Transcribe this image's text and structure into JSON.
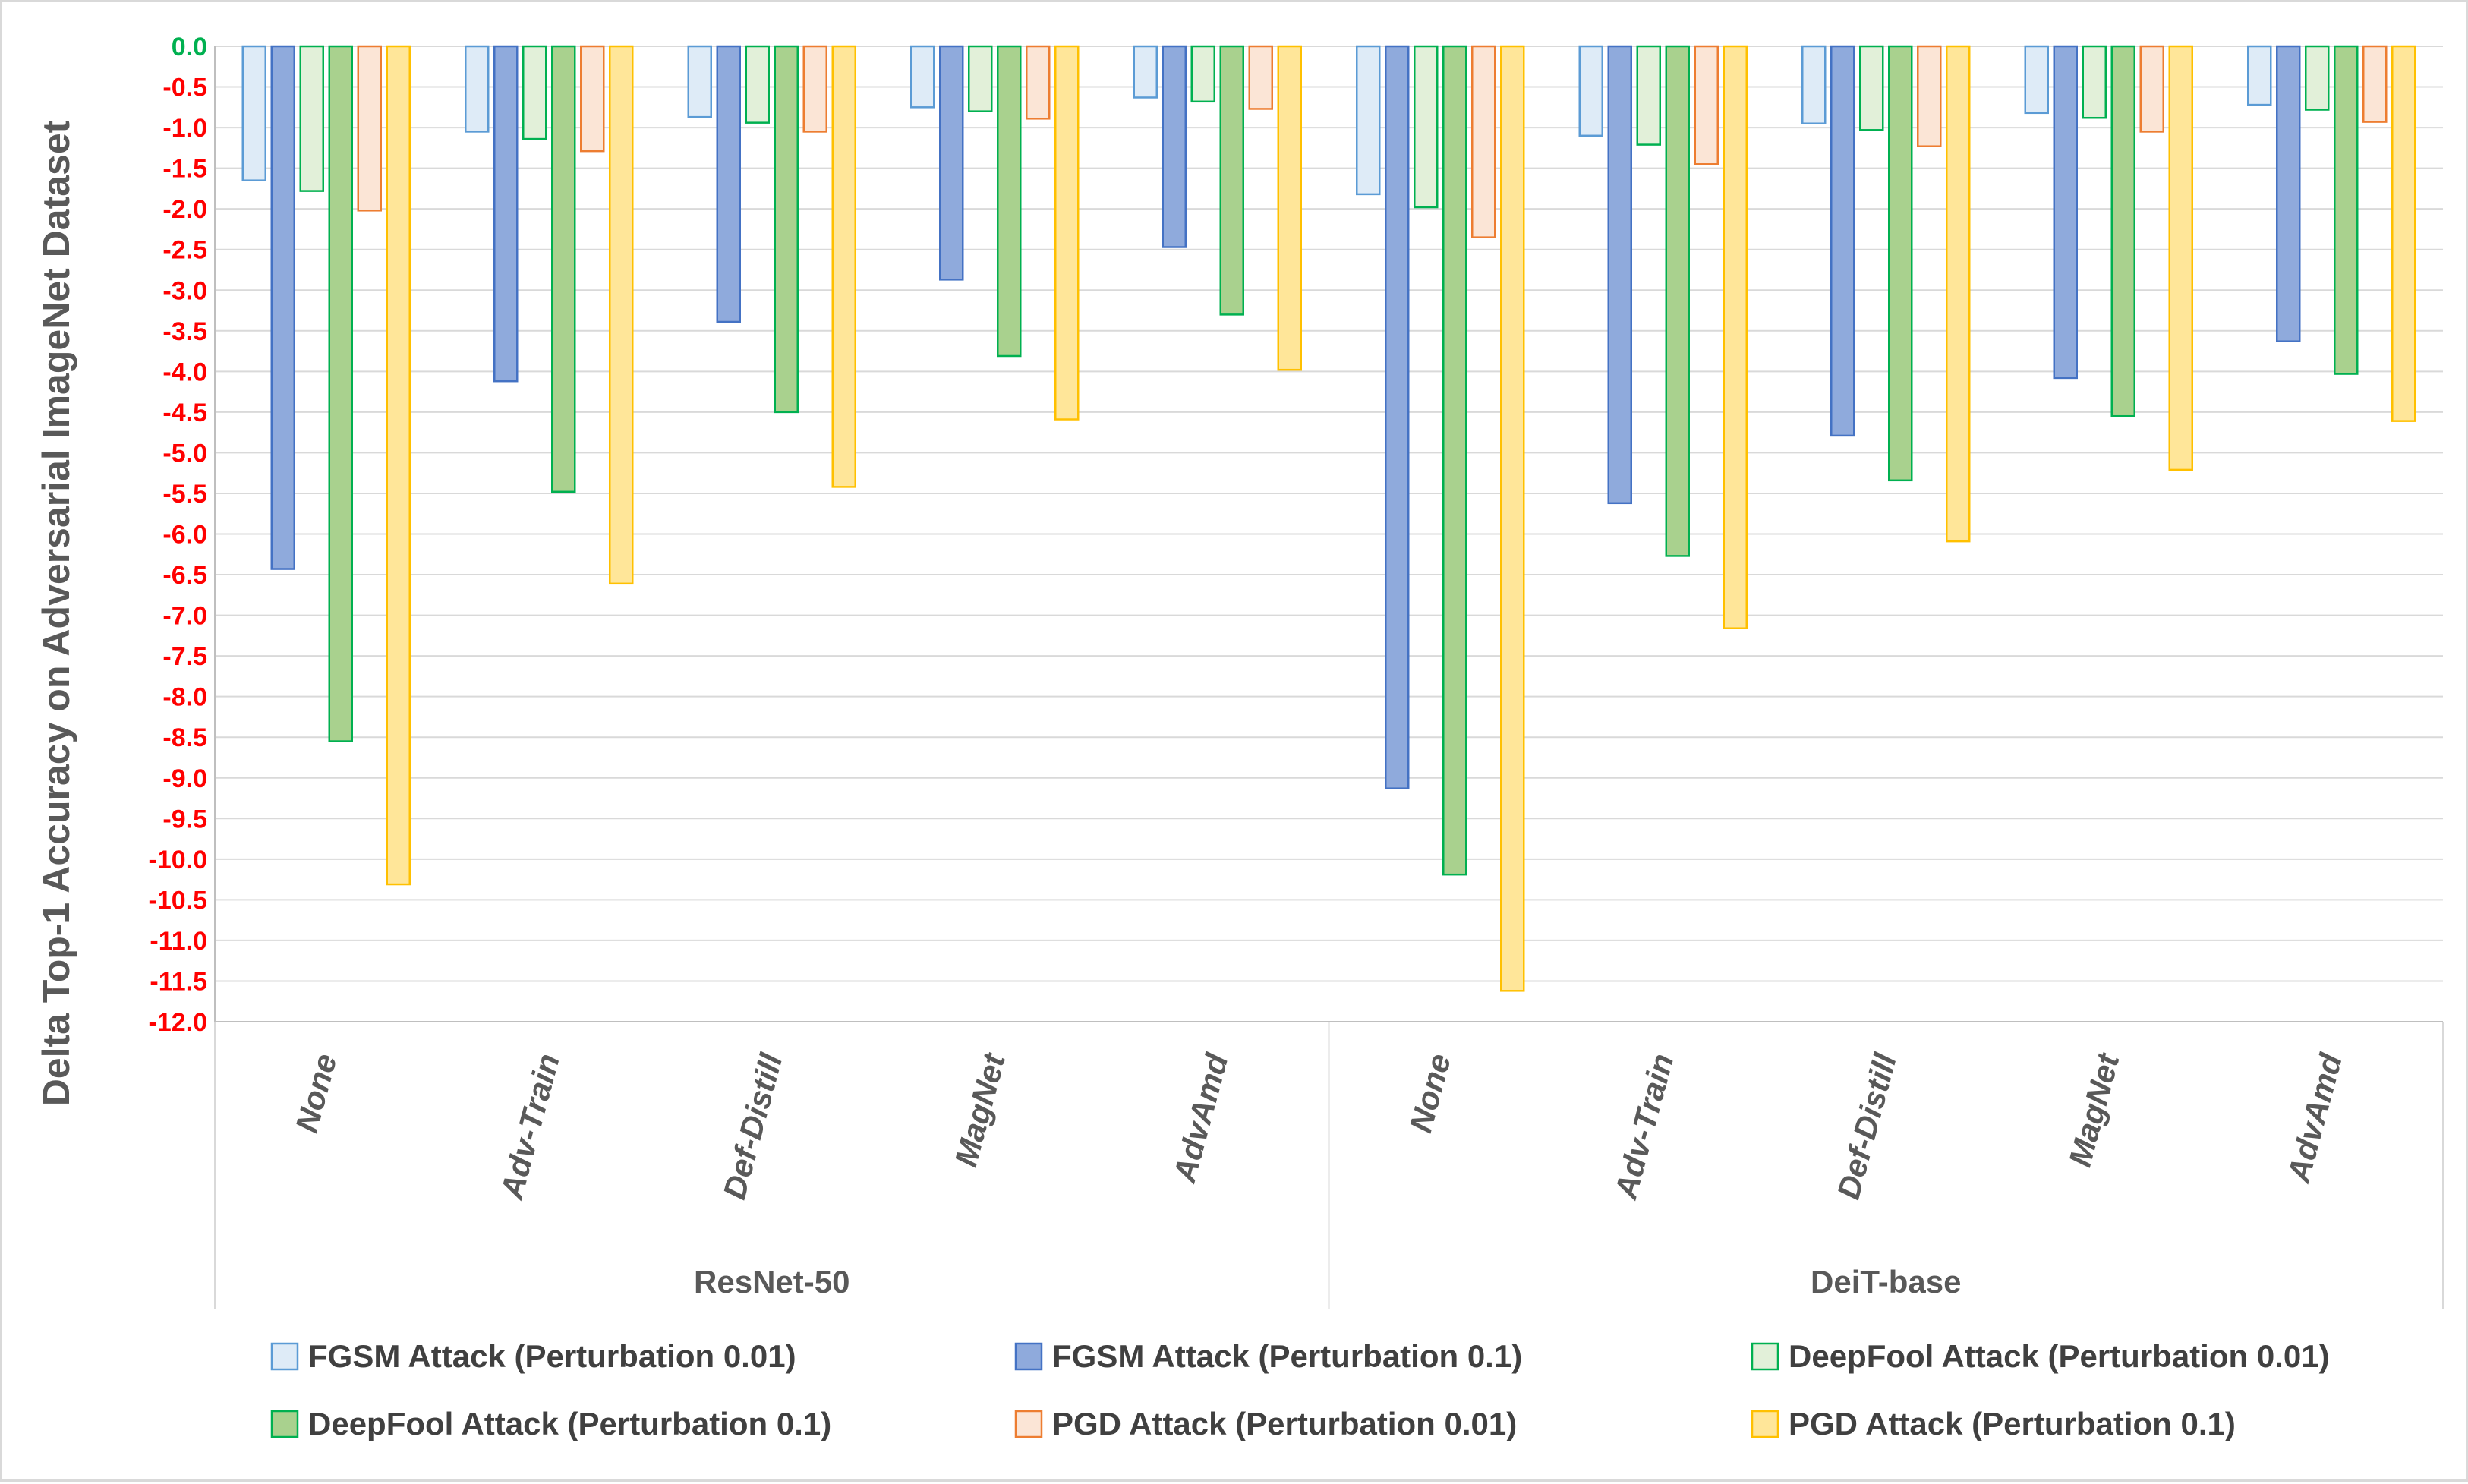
{
  "chart_data": {
    "type": "bar",
    "title": "",
    "xlabel": "",
    "ylabel": "Delta Top-1 Accuracy on Adversarial ImageNet Dataset",
    "ylim": [
      -12.0,
      0.0
    ],
    "ytick_step": 0.5,
    "yticks": [
      "0.0",
      "-0.5",
      "-1.0",
      "-1.5",
      "-2.0",
      "-2.5",
      "-3.0",
      "-3.5",
      "-4.0",
      "-4.5",
      "-5.0",
      "-5.5",
      "-6.0",
      "-6.5",
      "-7.0",
      "-7.5",
      "-8.0",
      "-8.5",
      "-9.0",
      "-9.5",
      "-10.0",
      "-10.5",
      "-11.0",
      "-11.5",
      "-12.0"
    ],
    "ytick_color_zero": "#00b050",
    "ytick_color": "#ff0000",
    "grid": true,
    "legend_position": "bottom",
    "groups": [
      {
        "name": "ResNet-50",
        "categories": [
          "None",
          "Adv-Train",
          "Def-Distill",
          "MagNet",
          "AdvAmd"
        ]
      },
      {
        "name": "DeiT-base",
        "categories": [
          "None",
          "Adv-Train",
          "Def-Distill",
          "MagNet",
          "AdvAmd"
        ]
      }
    ],
    "series": [
      {
        "name": "FGSM Attack (Perturbation 0.01)",
        "fill": "#deebf7",
        "stroke": "#5b9bd5",
        "values": [
          -1.65,
          -1.05,
          -0.87,
          -0.75,
          -0.63,
          -1.82,
          -1.1,
          -0.95,
          -0.82,
          -0.72
        ]
      },
      {
        "name": "FGSM Attack (Perturbation 0.1)",
        "fill": "#8faadc",
        "stroke": "#4472c4",
        "values": [
          -6.43,
          -4.12,
          -3.39,
          -2.87,
          -2.47,
          -9.13,
          -5.62,
          -4.79,
          -4.08,
          -3.63
        ]
      },
      {
        "name": "DeepFool Attack (Perturbation 0.01)",
        "fill": "#e2f0d9",
        "stroke": "#00b050",
        "values": [
          -1.78,
          -1.14,
          -0.94,
          -0.8,
          -0.68,
          -1.98,
          -1.21,
          -1.03,
          -0.88,
          -0.78
        ]
      },
      {
        "name": "DeepFool Attack (Perturbation 0.1)",
        "fill": "#a9d18e",
        "stroke": "#00b050",
        "values": [
          -8.55,
          -5.48,
          -4.5,
          -3.81,
          -3.3,
          -10.19,
          -6.27,
          -5.34,
          -4.55,
          -4.03
        ]
      },
      {
        "name": "PGD Attack (Perturbation 0.01)",
        "fill": "#fbe5d6",
        "stroke": "#ed7d31",
        "values": [
          -2.02,
          -1.29,
          -1.05,
          -0.89,
          -0.77,
          -2.35,
          -1.45,
          -1.23,
          -1.05,
          -0.93
        ]
      },
      {
        "name": "PGD Attack (Perturbation 0.1)",
        "fill": "#ffe699",
        "stroke": "#ffc000",
        "values": [
          -10.31,
          -6.61,
          -5.42,
          -4.59,
          -3.98,
          -11.62,
          -7.16,
          -6.09,
          -5.21,
          -4.61
        ]
      }
    ]
  }
}
